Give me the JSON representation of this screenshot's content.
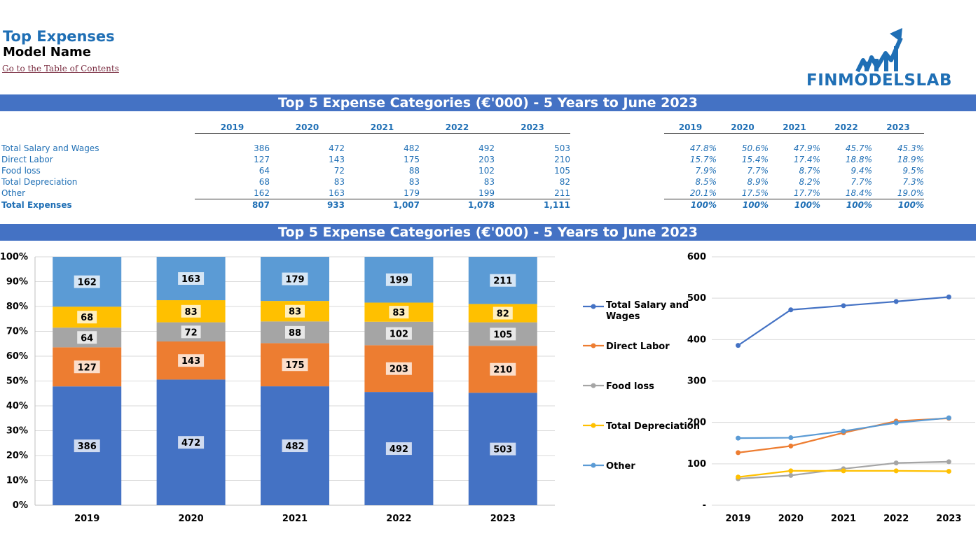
{
  "header": {
    "title": "Top Expenses",
    "model_name": "Model Name",
    "toc_link": "Go to the Table of Contents",
    "logo_text": "FINMODELSLAB"
  },
  "banners": {
    "table": "Top 5 Expense Categories (€'000) - 5 Years to June 2023",
    "charts": "Top 5 Expense Categories (€'000) - 5 Years to June 2023"
  },
  "table": {
    "years": [
      "2019",
      "2020",
      "2021",
      "2022",
      "2023"
    ],
    "rows": [
      {
        "label": "Total Salary and Wages",
        "values": [
          "386",
          "472",
          "482",
          "492",
          "503"
        ],
        "pct": [
          "47.8%",
          "50.6%",
          "47.9%",
          "45.7%",
          "45.3%"
        ]
      },
      {
        "label": "Direct Labor",
        "values": [
          "127",
          "143",
          "175",
          "203",
          "210"
        ],
        "pct": [
          "15.7%",
          "15.4%",
          "17.4%",
          "18.8%",
          "18.9%"
        ]
      },
      {
        "label": "Food loss",
        "values": [
          "64",
          "72",
          "88",
          "102",
          "105"
        ],
        "pct": [
          "7.9%",
          "7.7%",
          "8.7%",
          "9.4%",
          "9.5%"
        ]
      },
      {
        "label": "Total Depreciation",
        "values": [
          "68",
          "83",
          "83",
          "83",
          "82"
        ],
        "pct": [
          "8.5%",
          "8.9%",
          "8.2%",
          "7.7%",
          "7.3%"
        ]
      },
      {
        "label": "Other",
        "values": [
          "162",
          "163",
          "179",
          "199",
          "211"
        ],
        "pct": [
          "20.1%",
          "17.5%",
          "17.7%",
          "18.4%",
          "19.0%"
        ]
      }
    ],
    "total": {
      "label": "Total Expenses",
      "values": [
        "807",
        "933",
        "1,007",
        "1,078",
        "1,111"
      ],
      "pct": [
        "100%",
        "100%",
        "100%",
        "100%",
        "100%"
      ]
    }
  },
  "chart_data": [
    {
      "type": "bar",
      "stacked": "percent",
      "categories": [
        "2019",
        "2020",
        "2021",
        "2022",
        "2023"
      ],
      "series": [
        {
          "name": "Total Salary and Wages",
          "values": [
            386,
            472,
            482,
            492,
            503
          ],
          "color": "#4472c4"
        },
        {
          "name": "Direct Labor",
          "values": [
            127,
            143,
            175,
            203,
            210
          ],
          "color": "#ed7d31"
        },
        {
          "name": "Food loss",
          "values": [
            64,
            72,
            88,
            102,
            105
          ],
          "color": "#a5a5a5"
        },
        {
          "name": "Total Depreciation",
          "values": [
            68,
            83,
            83,
            83,
            82
          ],
          "color": "#ffc000"
        },
        {
          "name": "Other",
          "values": [
            162,
            163,
            179,
            199,
            211
          ],
          "color": "#5b9bd5"
        }
      ],
      "ylim": [
        0,
        1
      ],
      "ytick_labels": [
        "0%",
        "10%",
        "20%",
        "30%",
        "40%",
        "50%",
        "60%",
        "70%",
        "80%",
        "90%",
        "100%"
      ],
      "grid": true
    },
    {
      "type": "line",
      "categories": [
        "2019",
        "2020",
        "2021",
        "2022",
        "2023"
      ],
      "series": [
        {
          "name": "Total Salary and Wages",
          "values": [
            386,
            472,
            482,
            492,
            503
          ],
          "color": "#4472c4"
        },
        {
          "name": "Direct Labor",
          "values": [
            127,
            143,
            175,
            203,
            210
          ],
          "color": "#ed7d31"
        },
        {
          "name": "Food loss",
          "values": [
            64,
            72,
            88,
            102,
            105
          ],
          "color": "#a5a5a5"
        },
        {
          "name": "Total Depreciation",
          "values": [
            68,
            83,
            83,
            83,
            82
          ],
          "color": "#ffc000"
        },
        {
          "name": "Other",
          "values": [
            162,
            163,
            179,
            199,
            211
          ],
          "color": "#5b9bd5"
        }
      ],
      "ylim": [
        0,
        600
      ],
      "ytick_labels": [
        "-",
        "100",
        "200",
        "300",
        "400",
        "500",
        "600"
      ],
      "legend": [
        "Total Salary and Wages",
        "Direct Labor",
        "Food loss",
        "Total Depreciation",
        "Other"
      ],
      "legend_position": "left",
      "grid": true
    }
  ]
}
